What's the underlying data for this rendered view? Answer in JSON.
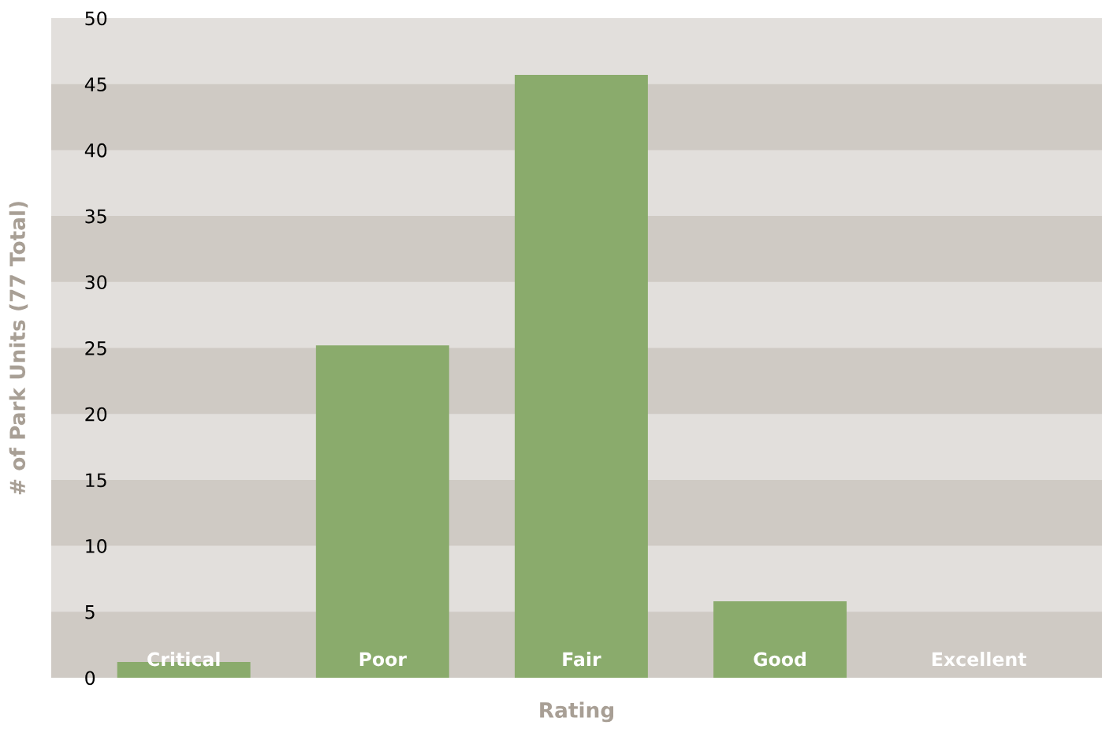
{
  "chart_data": {
    "type": "bar",
    "xlabel": "Rating",
    "ylabel": "# of Park Units (77 Total)",
    "categories": [
      "Critical",
      "Poor",
      "Fair",
      "Good",
      "Excellent"
    ],
    "values": [
      1.2,
      25.2,
      45.7,
      5.8,
      0
    ],
    "color": "#8aab6c",
    "ylim": [
      0,
      50
    ],
    "yticks": [
      0,
      5,
      10,
      15,
      20,
      25,
      30,
      35,
      40,
      45,
      50
    ],
    "bands": [
      {
        "axis": "y",
        "from": 0,
        "to": 5,
        "color": "#cfcac4"
      },
      {
        "axis": "y",
        "from": 10,
        "to": 15,
        "color": "#cfcac4"
      },
      {
        "axis": "y",
        "from": 20,
        "to": 25,
        "color": "#cfcac4"
      },
      {
        "axis": "y",
        "from": 30,
        "to": 35,
        "color": "#cfcac4"
      },
      {
        "axis": "y",
        "from": 40,
        "to": 45,
        "color": "#cfcac4"
      }
    ]
  }
}
